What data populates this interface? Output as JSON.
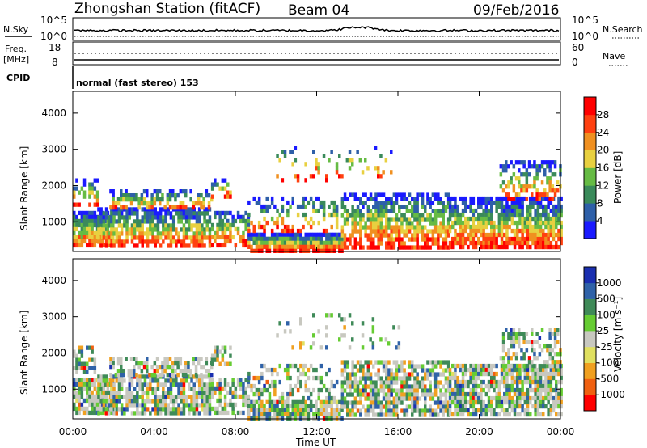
{
  "header": {
    "station": "Zhongshan Station (fitACF)",
    "beam": "Beam 04",
    "date": "09/Feb/2016"
  },
  "top_panels": {
    "nsky_label": "N.Sky",
    "nsearch_label": "N.Search",
    "nsky_ticks": [
      "10^5",
      "10^0"
    ],
    "freq_label": "Freq.",
    "freq_unit": "[MHz]",
    "freq_ticks": [
      "18",
      "8"
    ],
    "nave_label": "Nave",
    "nave_ticks": [
      "60",
      "0"
    ],
    "cpid_label": "CPID",
    "cpid_text": "normal (fast stereo) 153"
  },
  "chart_data": [
    {
      "type": "heatmap",
      "name": "power",
      "ylabel": "Slant Range [km]",
      "xlabel": "",
      "y_ticks": [
        1000,
        2000,
        3000,
        4000
      ],
      "ylim": [
        180,
        4600
      ],
      "colorbar_label": "Power [dB]",
      "colorbar_ticks": [
        "4",
        "8",
        "12",
        "16",
        "20",
        "24",
        "28"
      ],
      "colorbar_colors": [
        "#1a1aff",
        "#2e5fa8",
        "#3a8a5a",
        "#66bb44",
        "#e8d040",
        "#f09020",
        "#ff4010",
        "#ff0000"
      ]
    },
    {
      "type": "heatmap",
      "name": "velocity",
      "ylabel": "Slant Range [km]",
      "xlabel": "Time UT",
      "x_ticks": [
        "00:00",
        "04:00",
        "08:00",
        "12:00",
        "16:00",
        "20:00",
        "00:00"
      ],
      "y_ticks": [
        1000,
        2000,
        3000,
        4000
      ],
      "ylim": [
        180,
        4600
      ],
      "colorbar_label": "Velocity [m s⁻¹]",
      "colorbar_ticks": [
        "1000",
        "500",
        "100",
        "25",
        "-25",
        "-100",
        "-500",
        "-1000"
      ],
      "colorbar_colors": [
        "#1a2fb0",
        "#2f62a8",
        "#3f8a58",
        "#66cc33",
        "#c8c8c0",
        "#e0e060",
        "#f0a020",
        "#f06010",
        "#ff0000"
      ]
    }
  ]
}
